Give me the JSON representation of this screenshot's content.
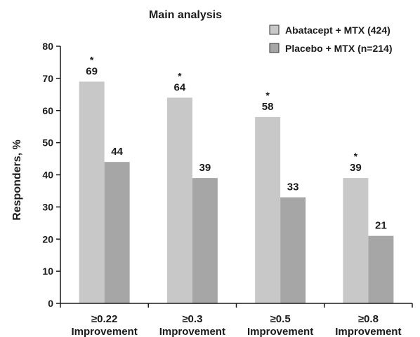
{
  "chart_data": {
    "type": "bar",
    "title": "Main analysis",
    "ylabel": "Responders, %",
    "xlabel": "",
    "ylim": [
      0,
      80
    ],
    "yticks": [
      0,
      10,
      20,
      30,
      40,
      50,
      60,
      70,
      80
    ],
    "grid": false,
    "legend_position": "top-right",
    "categories": [
      [
        "≥0.22",
        "Improvement"
      ],
      [
        "≥0.3",
        "Improvement"
      ],
      [
        "≥0.5",
        "Improvement"
      ],
      [
        "≥0.8",
        "Improvement"
      ]
    ],
    "series": [
      {
        "name": "Abatacept + MTX (424)",
        "color": "#c8c8c8",
        "values": [
          69,
          64,
          58,
          39
        ],
        "labels": [
          "69",
          "64",
          "58",
          "39"
        ],
        "significance": [
          "*",
          "*",
          "*",
          "*"
        ]
      },
      {
        "name": "Placebo + MTX (n=214)",
        "color": "#a6a6a6",
        "values": [
          44,
          39,
          33,
          21
        ],
        "labels": [
          "44",
          "39",
          "33",
          "21"
        ],
        "significance": [
          "",
          "",
          "",
          ""
        ]
      }
    ]
  }
}
